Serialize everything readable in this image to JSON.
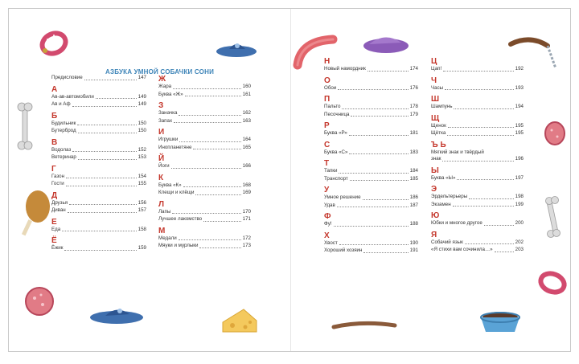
{
  "title": "АЗБУКА УМНОЙ СОБАЧКИ СОНИ",
  "columns": [
    {
      "sections": [
        {
          "letter": "",
          "entries": [
            {
              "t": "Предисловие",
              "p": "147"
            }
          ]
        },
        {
          "letter": "А",
          "entries": [
            {
              "t": "Ав-ав-автомобили",
              "p": "149"
            },
            {
              "t": "Ав и Аф",
              "p": "149"
            }
          ]
        },
        {
          "letter": "Б",
          "entries": [
            {
              "t": "Будильник",
              "p": "150"
            },
            {
              "t": "Бутерброд",
              "p": "150"
            }
          ]
        },
        {
          "letter": "В",
          "entries": [
            {
              "t": "Водолаз",
              "p": "152"
            },
            {
              "t": "Ветеринар",
              "p": "153"
            }
          ]
        },
        {
          "letter": "Г",
          "entries": [
            {
              "t": "Газон",
              "p": "154"
            },
            {
              "t": "Гости",
              "p": "155"
            }
          ]
        },
        {
          "letter": "Д",
          "entries": [
            {
              "t": "Друзья",
              "p": "156"
            },
            {
              "t": "Диван",
              "p": "157"
            }
          ]
        },
        {
          "letter": "Е",
          "entries": [
            {
              "t": "Еда",
              "p": "158"
            }
          ]
        },
        {
          "letter": "Ё",
          "entries": [
            {
              "t": "Ёжик",
              "p": "159"
            }
          ]
        }
      ]
    },
    {
      "sections": [
        {
          "letter": "Ж",
          "entries": [
            {
              "t": "Жара",
              "p": "160"
            },
            {
              "t": "Буква «Ж»",
              "p": "161"
            }
          ]
        },
        {
          "letter": "З",
          "entries": [
            {
              "t": "Заначка",
              "p": "162"
            },
            {
              "t": "Запах",
              "p": "163"
            }
          ]
        },
        {
          "letter": "И",
          "entries": [
            {
              "t": "Игрушки",
              "p": "164"
            },
            {
              "t": "Инопланетяне",
              "p": "165"
            }
          ]
        },
        {
          "letter": "Й",
          "entries": [
            {
              "t": "Йоги",
              "p": "166"
            }
          ]
        },
        {
          "letter": "К",
          "entries": [
            {
              "t": "Буква «К»",
              "p": "168"
            },
            {
              "t": "Клещи и клёщи",
              "p": "169"
            }
          ]
        },
        {
          "letter": "Л",
          "entries": [
            {
              "t": "Лапы",
              "p": "170"
            },
            {
              "t": "Лучшее лакомство",
              "p": "171"
            }
          ]
        },
        {
          "letter": "М",
          "entries": [
            {
              "t": "Медали",
              "p": "172"
            },
            {
              "t": "Мяуки и мурлыки",
              "p": "173"
            }
          ]
        }
      ]
    },
    {
      "sections": [
        {
          "letter": "Н",
          "entries": [
            {
              "t": "Новый намордник",
              "p": "174"
            }
          ]
        },
        {
          "letter": "О",
          "entries": [
            {
              "t": "Обои",
              "p": "176"
            }
          ]
        },
        {
          "letter": "П",
          "entries": [
            {
              "t": "Пальто",
              "p": "178"
            },
            {
              "t": "Песочница",
              "p": "179"
            }
          ]
        },
        {
          "letter": "Р",
          "entries": [
            {
              "t": "Буква «Р»",
              "p": "181"
            }
          ]
        },
        {
          "letter": "С",
          "entries": [
            {
              "t": "Буква «С»",
              "p": "183"
            }
          ]
        },
        {
          "letter": "Т",
          "entries": [
            {
              "t": "Тапки",
              "p": "184"
            },
            {
              "t": "Транспорт",
              "p": "185"
            }
          ]
        },
        {
          "letter": "У",
          "entries": [
            {
              "t": "Умное решение",
              "p": "186"
            },
            {
              "t": "Удав",
              "p": "187"
            }
          ]
        },
        {
          "letter": "Ф",
          "entries": [
            {
              "t": "Фу!",
              "p": "188"
            }
          ]
        },
        {
          "letter": "Х",
          "entries": [
            {
              "t": "Хвост",
              "p": "190"
            },
            {
              "t": "Хороший хозяин",
              "p": "191"
            }
          ]
        }
      ]
    },
    {
      "sections": [
        {
          "letter": "Ц",
          "entries": [
            {
              "t": "Цап!",
              "p": "192"
            }
          ]
        },
        {
          "letter": "Ч",
          "entries": [
            {
              "t": "Часы",
              "p": "193"
            }
          ]
        },
        {
          "letter": "Ш",
          "entries": [
            {
              "t": "Шампунь",
              "p": "194"
            }
          ]
        },
        {
          "letter": "Щ",
          "entries": [
            {
              "t": "Щенок",
              "p": "195"
            },
            {
              "t": "Щётка",
              "p": "195"
            }
          ]
        },
        {
          "letter": "Ъ Ь",
          "entries": [
            {
              "t": "Мягкий знак и твёрдый знак",
              "p": "196",
              "wrap": true
            }
          ]
        },
        {
          "letter": "Ы",
          "entries": [
            {
              "t": "Буква «Ы»",
              "p": "197"
            }
          ]
        },
        {
          "letter": "Э",
          "entries": [
            {
              "t": "Эрдельтерьеры",
              "p": "198"
            },
            {
              "t": "Экзамен",
              "p": "199"
            }
          ]
        },
        {
          "letter": "Ю",
          "entries": [
            {
              "t": "Юбки и многое другое",
              "p": "200"
            }
          ]
        },
        {
          "letter": "Я",
          "entries": [
            {
              "t": "Собачий язык",
              "p": "202"
            },
            {
              "t": "«Я стихи вам сочинила…»",
              "p": "203"
            }
          ]
        }
      ]
    }
  ],
  "illustrations": [
    "collar-icon",
    "slipper-icon",
    "sausage-icon",
    "bone-icon",
    "ham-icon",
    "cheese-icon",
    "stick-icon",
    "dog-bowl-icon",
    "leash-icon"
  ]
}
